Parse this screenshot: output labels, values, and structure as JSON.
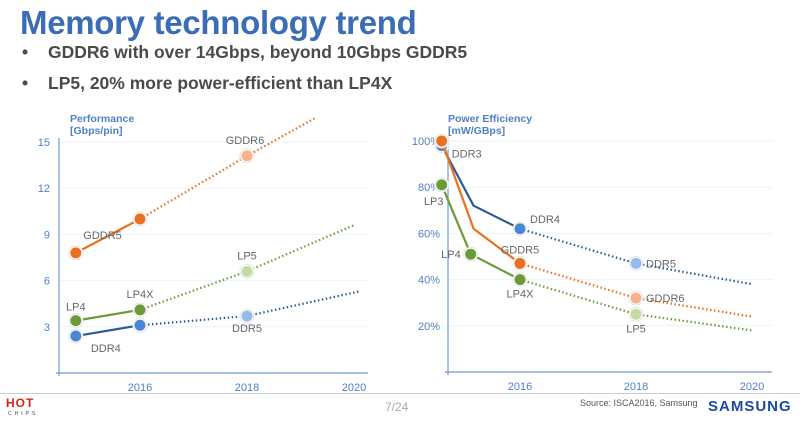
{
  "title": "Memory technology trend",
  "bullets": [
    "GDDR6 with over 14Gbps, beyond 10Gbps GDDR5",
    "LP5, 20% more power-efficient than LP4X"
  ],
  "footer": {
    "page": "7/24",
    "source": "Source: ISCA2016, Samsung",
    "logo": "SAMSUNG",
    "hotchips_logo": "HOT CHIPS"
  },
  "colors": {
    "gddr": "#e8701e",
    "gddr_future": "#f5b48a",
    "lp": "#6b9a3a",
    "lp_future": "#c6dba4",
    "ddr": "#4a86d6",
    "ddr_line": "#2f5a94",
    "ddr_future": "#94bbea",
    "axis": "#6f9bd3",
    "label": "#4f7fc4"
  },
  "chart_data": [
    {
      "type": "line",
      "ylabel": "Performance [Gbps/pin]",
      "ylabel_lines": [
        "Performance",
        "[Gbps/pin]"
      ],
      "ylim": [
        0,
        15
      ],
      "yticks": [
        3,
        6,
        9,
        12,
        15
      ],
      "xticks": [
        2016,
        2018,
        2020
      ],
      "grid": true,
      "series": [
        {
          "key": "gddr",
          "points": [
            {
              "x": 2014.8,
              "y": 7.8,
              "label": "GDDR5",
              "marker": true
            },
            {
              "x": 2016,
              "y": 10.0,
              "label": "",
              "marker": true
            },
            {
              "x": 2018,
              "y": 14.1,
              "label": "GDDR6",
              "marker": true,
              "projected": true
            },
            {
              "x": 2019.3,
              "y": 16.6,
              "projected": true
            }
          ]
        },
        {
          "key": "lp",
          "points": [
            {
              "x": 2014.8,
              "y": 3.4,
              "label": "LP4",
              "marker": true
            },
            {
              "x": 2016,
              "y": 4.1,
              "label": "LP4X",
              "marker": true
            },
            {
              "x": 2018,
              "y": 6.6,
              "label": "LP5",
              "marker": true,
              "projected": true
            },
            {
              "x": 2020,
              "y": 9.6,
              "projected": true
            }
          ]
        },
        {
          "key": "ddr",
          "points": [
            {
              "x": 2014.8,
              "y": 2.4,
              "label": "DDR4",
              "marker": true
            },
            {
              "x": 2016,
              "y": 3.1,
              "label": "",
              "marker": true
            },
            {
              "x": 2018,
              "y": 3.7,
              "label": "DDR5",
              "marker": true,
              "projected": true
            },
            {
              "x": 2020.1,
              "y": 5.3,
              "projected": true
            }
          ]
        }
      ]
    },
    {
      "type": "line",
      "ylabel": "Power Efficiency [mW/GBps]",
      "ylabel_lines": [
        "Power Efficiency",
        "[mW/GBps]"
      ],
      "ylim": [
        0,
        100
      ],
      "yticks": [
        20,
        40,
        60,
        80,
        100
      ],
      "ytick_suffix": "%",
      "xticks": [
        2016,
        2018,
        2020
      ],
      "grid": true,
      "series": [
        {
          "key": "ddr",
          "points": [
            {
              "x": 2014.65,
              "y": 98,
              "label": "DDR3",
              "marker": true
            },
            {
              "x": 2015.2,
              "y": 72
            },
            {
              "x": 2016,
              "y": 62,
              "label": "DDR4",
              "marker": true
            },
            {
              "x": 2018,
              "y": 47,
              "label": "DDR5",
              "marker": true,
              "projected": true
            },
            {
              "x": 2020,
              "y": 38,
              "projected": true
            }
          ]
        },
        {
          "key": "gddr",
          "points": [
            {
              "x": 2014.65,
              "y": 100,
              "label": "",
              "marker": true
            },
            {
              "x": 2015.2,
              "y": 62
            },
            {
              "x": 2016,
              "y": 47,
              "label": "GDDR5",
              "marker": true
            },
            {
              "x": 2018,
              "y": 32,
              "label": "GDDR6",
              "marker": true,
              "projected": true
            },
            {
              "x": 2020,
              "y": 24,
              "projected": true
            }
          ]
        },
        {
          "key": "lp",
          "points": [
            {
              "x": 2014.65,
              "y": 81,
              "label": "LP3",
              "marker": true
            },
            {
              "x": 2015.15,
              "y": 51,
              "label": "LP4",
              "marker": true
            },
            {
              "x": 2016,
              "y": 40,
              "label": "LP4X",
              "marker": true
            },
            {
              "x": 2018,
              "y": 25,
              "label": "LP5",
              "marker": true,
              "projected": true
            },
            {
              "x": 2020,
              "y": 18,
              "projected": true
            }
          ]
        }
      ]
    }
  ]
}
